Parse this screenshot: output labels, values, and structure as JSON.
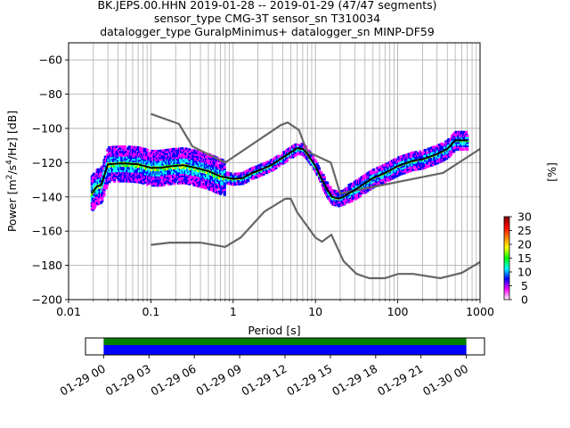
{
  "chart_data": {
    "type": "ppsd",
    "title_lines": [
      "BK.JEPS.00.HHN   2019-01-28 -- 2019-01-29  (47/47 segments)",
      "sensor_type CMG-3T sensor_sn T310034",
      "datalogger_type GuralpMinimus+ datalogger_sn MINP-DF59"
    ],
    "xlabel": "Period [s]",
    "ylabel_parts": {
      "pre": "Power [m",
      "sup1": "2",
      "mid": "/s",
      "sup2": "4",
      "post": "/Hz] [dB]"
    },
    "xscale": "log",
    "xlim": [
      0.01,
      1000
    ],
    "ylim": [
      -200,
      -50
    ],
    "x_ticks": [
      {
        "value": 0.01,
        "label": "0.01"
      },
      {
        "value": 0.1,
        "label": "0.1"
      },
      {
        "value": 1,
        "label": "1"
      },
      {
        "value": 10,
        "label": "10"
      },
      {
        "value": 100,
        "label": "100"
      },
      {
        "value": 1000,
        "label": "1000"
      }
    ],
    "y_ticks": [
      {
        "value": -60,
        "label": "−60"
      },
      {
        "value": -80,
        "label": "−80"
      },
      {
        "value": -100,
        "label": "−100"
      },
      {
        "value": -120,
        "label": "−120"
      },
      {
        "value": -140,
        "label": "−140"
      },
      {
        "value": -160,
        "label": "−160"
      },
      {
        "value": -180,
        "label": "−180"
      },
      {
        "value": -200,
        "label": "−200"
      }
    ],
    "grid": true,
    "series": [
      {
        "name": "NHNM",
        "color": "#666666",
        "points": [
          [
            0.1,
            -91.5
          ],
          [
            0.22,
            -97.4
          ],
          [
            0.32,
            -110.5
          ],
          [
            0.8,
            -120
          ],
          [
            3.8,
            -98
          ],
          [
            4.6,
            -96.5
          ],
          [
            6.3,
            -101
          ],
          [
            7.9,
            -113.5
          ],
          [
            15.4,
            -120
          ],
          [
            20,
            -138
          ],
          [
            354.8,
            -126
          ],
          [
            1000,
            -112
          ]
        ]
      },
      {
        "name": "NLNM",
        "color": "#666666",
        "points": [
          [
            0.1,
            -168
          ],
          [
            0.17,
            -166.7
          ],
          [
            0.4,
            -166.7
          ],
          [
            0.8,
            -169.2
          ],
          [
            1.24,
            -163.7
          ],
          [
            2.4,
            -148.6
          ],
          [
            4.3,
            -141.1
          ],
          [
            5,
            -141.1
          ],
          [
            6,
            -149
          ],
          [
            10,
            -163.8
          ],
          [
            12,
            -166.2
          ],
          [
            15.6,
            -162.1
          ],
          [
            21.9,
            -177.5
          ],
          [
            31.6,
            -185
          ],
          [
            45,
            -187.5
          ],
          [
            70,
            -187.5
          ],
          [
            101,
            -185
          ],
          [
            154,
            -185
          ],
          [
            328,
            -187.5
          ],
          [
            600,
            -184.4
          ],
          [
            1000,
            -178
          ]
        ]
      },
      {
        "name": "mean",
        "color": "#000000",
        "points": [
          [
            0.019,
            -138
          ],
          [
            0.022,
            -134
          ],
          [
            0.025,
            -133
          ],
          [
            0.03,
            -121
          ],
          [
            0.04,
            -120.5
          ],
          [
            0.05,
            -120.5
          ],
          [
            0.07,
            -121
          ],
          [
            0.1,
            -123
          ],
          [
            0.13,
            -123
          ],
          [
            0.18,
            -122
          ],
          [
            0.25,
            -121.5
          ],
          [
            0.35,
            -123
          ],
          [
            0.5,
            -125
          ],
          [
            0.7,
            -128
          ],
          [
            1,
            -129.5
          ],
          [
            1.3,
            -129
          ],
          [
            1.7,
            -126
          ],
          [
            2.2,
            -124
          ],
          [
            3,
            -121
          ],
          [
            4,
            -117
          ],
          [
            5,
            -114
          ],
          [
            6,
            -111.5
          ],
          [
            7,
            -112
          ],
          [
            8,
            -115
          ],
          [
            10,
            -122
          ],
          [
            12,
            -130
          ],
          [
            14,
            -136
          ],
          [
            16,
            -140
          ],
          [
            19,
            -141
          ],
          [
            22,
            -140
          ],
          [
            25,
            -138
          ],
          [
            30,
            -136
          ],
          [
            40,
            -132
          ],
          [
            50,
            -129
          ],
          [
            70,
            -126
          ],
          [
            100,
            -122
          ],
          [
            150,
            -119
          ],
          [
            200,
            -118
          ],
          [
            300,
            -115
          ],
          [
            400,
            -112
          ],
          [
            500,
            -107
          ],
          [
            700,
            -107
          ]
        ]
      }
    ],
    "colorbar": {
      "label": "[%]",
      "min": 0,
      "max": 30,
      "ticks": [
        {
          "value": 0,
          "label": "0"
        },
        {
          "value": 5,
          "label": "5"
        },
        {
          "value": 10,
          "label": "10"
        },
        {
          "value": 15,
          "label": "15"
        },
        {
          "value": 20,
          "label": "20"
        },
        {
          "value": 25,
          "label": "25"
        },
        {
          "value": 30,
          "label": "30"
        }
      ],
      "colors": [
        "#ffffff",
        "#ff00ff",
        "#0000ff",
        "#00ffff",
        "#00ff00",
        "#ffff00",
        "#ff7f00",
        "#ff0000",
        "#7f0000"
      ]
    },
    "coverage": {
      "time_labels": [
        "01-29 00",
        "01-29 03",
        "01-29 06",
        "01-29 09",
        "01-29 12",
        "01-29 15",
        "01-29 18",
        "01-29 21",
        "01-30 00"
      ],
      "span_hours": [
        -1.2,
        25.2
      ],
      "data_hours": [
        0,
        24
      ],
      "rows": [
        {
          "name": "green",
          "color": "#008000"
        },
        {
          "name": "blue",
          "color": "#0000ff"
        }
      ]
    }
  }
}
